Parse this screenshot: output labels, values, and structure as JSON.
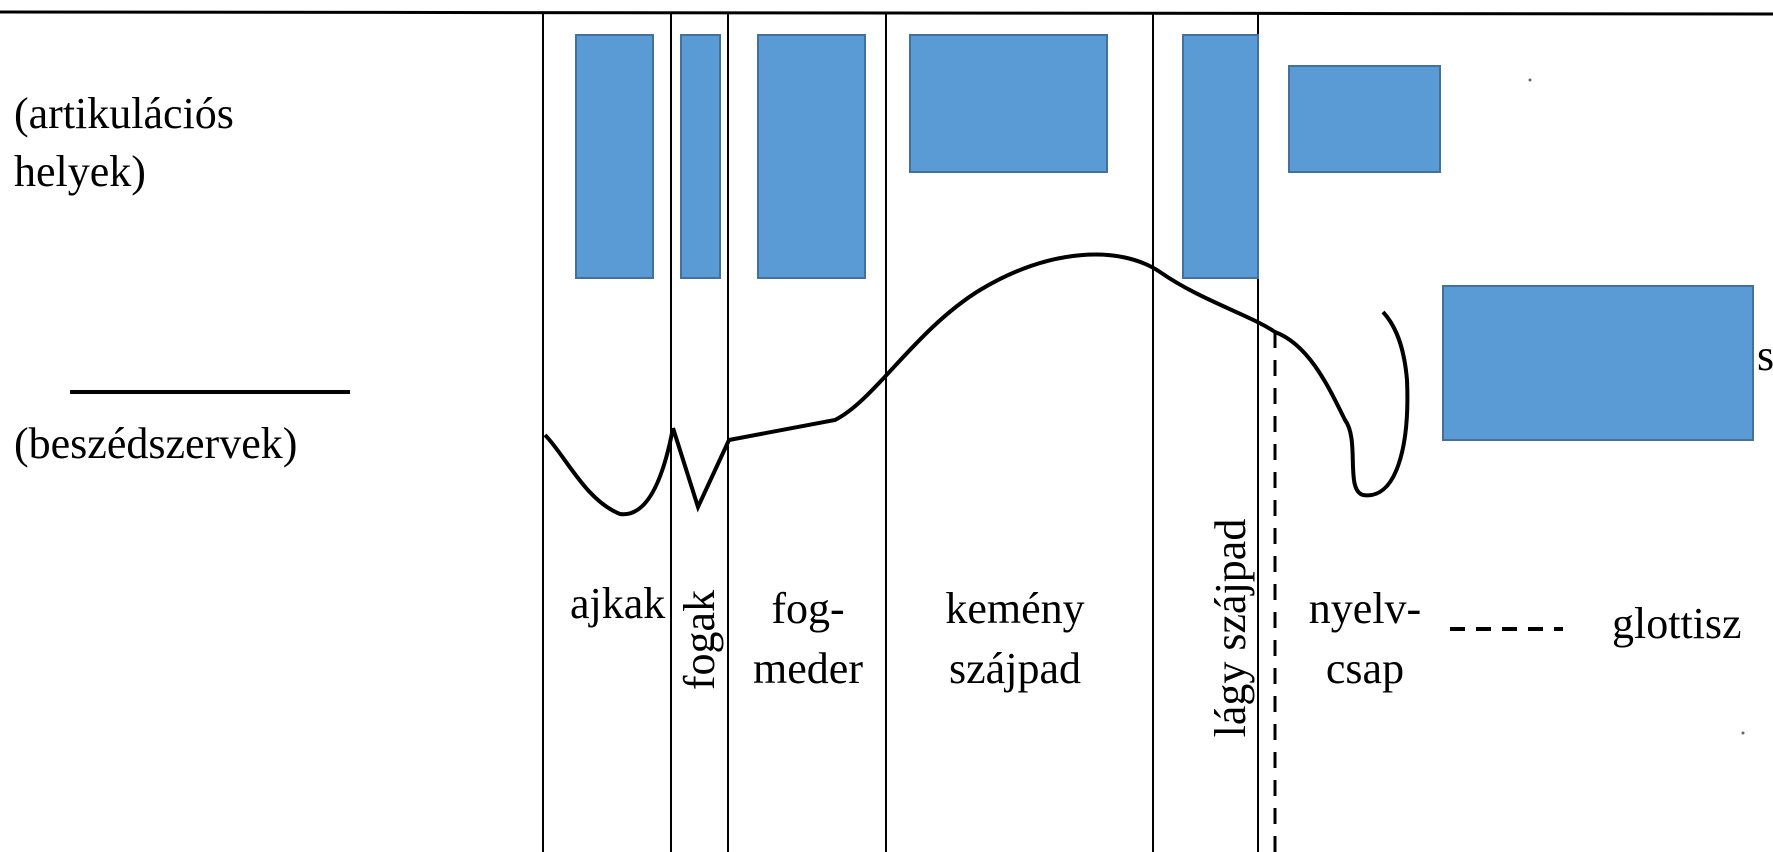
{
  "left_labels": {
    "places_line1": "(artikulációs",
    "places_line2": "helyek)",
    "organs": "(beszédszervek)"
  },
  "regions": {
    "lips": "ajkak",
    "teeth": "fogak",
    "alveolar_line1": "fog-",
    "alveolar_line2": "meder",
    "hard_palate_line1": "kemény",
    "hard_palate_line2": "szájpad",
    "soft_palate": "lágy szájpad",
    "uvula_line1": "nyelv-",
    "uvula_line2": "csap",
    "glottis": "glottisz",
    "clipped_letter": "s"
  },
  "colors": {
    "box_fill": "#5b9bd5",
    "box_stroke": "#41719c",
    "line": "#000000"
  }
}
